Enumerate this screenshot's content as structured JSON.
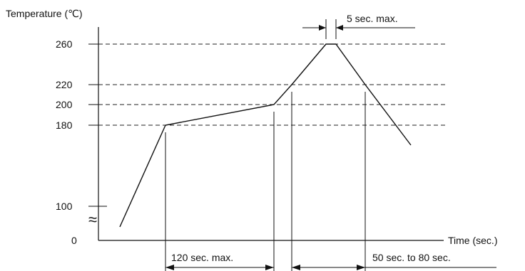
{
  "chart_data": {
    "type": "line",
    "title": "",
    "ylabel": "Temperature (℃)",
    "xlabel": "Time (sec.)",
    "y_ticks": [
      "260",
      "220",
      "200",
      "180",
      "100",
      "0"
    ],
    "axis_break_symbol": "≈",
    "series": [
      {
        "values": [
          {
            "x": 0,
            "y": 0
          },
          {
            "x": 35,
            "y": 180
          },
          {
            "x": 155,
            "y": 200
          },
          {
            "x": 185,
            "y": 240
          },
          {
            "x": 205,
            "y": 260
          },
          {
            "x": 210,
            "y": 260
          },
          {
            "x": 225,
            "y": 240
          },
          {
            "x": 265,
            "y": 175
          }
        ]
      }
    ],
    "annotations": {
      "peak_hold": "5 sec. max.",
      "preheat": "120 sec. max.",
      "above_220": "50 sec. to 80 sec."
    }
  }
}
